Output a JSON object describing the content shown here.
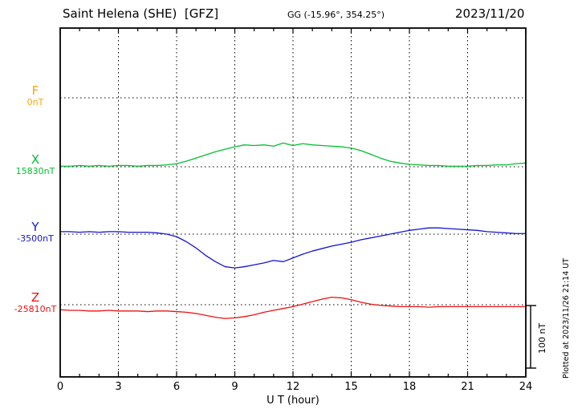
{
  "chart_data": {
    "type": "line",
    "title": "Saint Helena (SHE)  [GFZ]",
    "coords": "GG (-15.96°, 354.25°)",
    "date": "2023/11/20",
    "xlabel": "U T (hour)",
    "xlim": [
      0,
      24
    ],
    "x_ticks": [
      0,
      3,
      6,
      9,
      12,
      15,
      18,
      21,
      24
    ],
    "x_unit": "hour (UT)",
    "y_unit": "nT offset from each channel baseline",
    "grid": "dotted vertical lines every 3 h; dotted horizontal line at each channel baseline",
    "scale_bar": {
      "label": "100 nT",
      "nT": 100
    },
    "plotted_at": "Plotted at 2023/11/26 21:14 UT",
    "x_hours": [
      0,
      0.5,
      1,
      1.5,
      2,
      2.5,
      3,
      3.5,
      4,
      4.5,
      5,
      5.5,
      6,
      6.5,
      7,
      7.5,
      8,
      8.5,
      9,
      9.5,
      10,
      10.5,
      11,
      11.5,
      12,
      12.5,
      13,
      13.5,
      14,
      14.5,
      15,
      15.5,
      16,
      16.5,
      17,
      17.5,
      18,
      18.5,
      19,
      19.5,
      20,
      20.5,
      21,
      21.5,
      22,
      22.5,
      23,
      23.5,
      24
    ],
    "series": [
      {
        "name": "F",
        "baseline_label": "0nT",
        "color": "#ffa500",
        "values_nT": []
      },
      {
        "name": "X",
        "baseline_label": "15830nT",
        "color": "#00c030",
        "values_nT": [
          1,
          1,
          2,
          1,
          2,
          1,
          2,
          2,
          1,
          2,
          2,
          3,
          5,
          9,
          14,
          19,
          24,
          28,
          32,
          35,
          34,
          35,
          33,
          38,
          34,
          37,
          35,
          34,
          33,
          32,
          30,
          26,
          20,
          14,
          9,
          6,
          4,
          3,
          2,
          2,
          1,
          1,
          1,
          2,
          2,
          3,
          3,
          5,
          6
        ]
      },
      {
        "name": "Y",
        "baseline_label": "-3500nT",
        "color": "#1515d0",
        "values_nT": [
          4,
          4,
          3,
          4,
          3,
          4,
          4,
          3,
          3,
          3,
          2,
          0,
          -4,
          -12,
          -22,
          -34,
          -44,
          -52,
          -54,
          -52,
          -49,
          -46,
          -42,
          -44,
          -38,
          -32,
          -27,
          -23,
          -19,
          -16,
          -13,
          -9,
          -6,
          -3,
          0,
          3,
          6,
          8,
          10,
          10,
          9,
          8,
          7,
          6,
          4,
          3,
          2,
          1,
          1
        ]
      },
      {
        "name": "Z",
        "baseline_label": "-25810nT",
        "color": "#ee1111",
        "values_nT": [
          -8,
          -9,
          -9,
          -10,
          -10,
          -9,
          -10,
          -10,
          -10,
          -11,
          -10,
          -10,
          -11,
          -12,
          -14,
          -17,
          -20,
          -22,
          -21,
          -19,
          -16,
          -12,
          -9,
          -6,
          -3,
          1,
          5,
          9,
          12,
          11,
          8,
          4,
          1,
          -1,
          -2,
          -3,
          -3,
          -3,
          -4,
          -3,
          -3,
          -3,
          -3,
          -3,
          -3,
          -3,
          -3,
          -3,
          -3
        ]
      }
    ]
  }
}
